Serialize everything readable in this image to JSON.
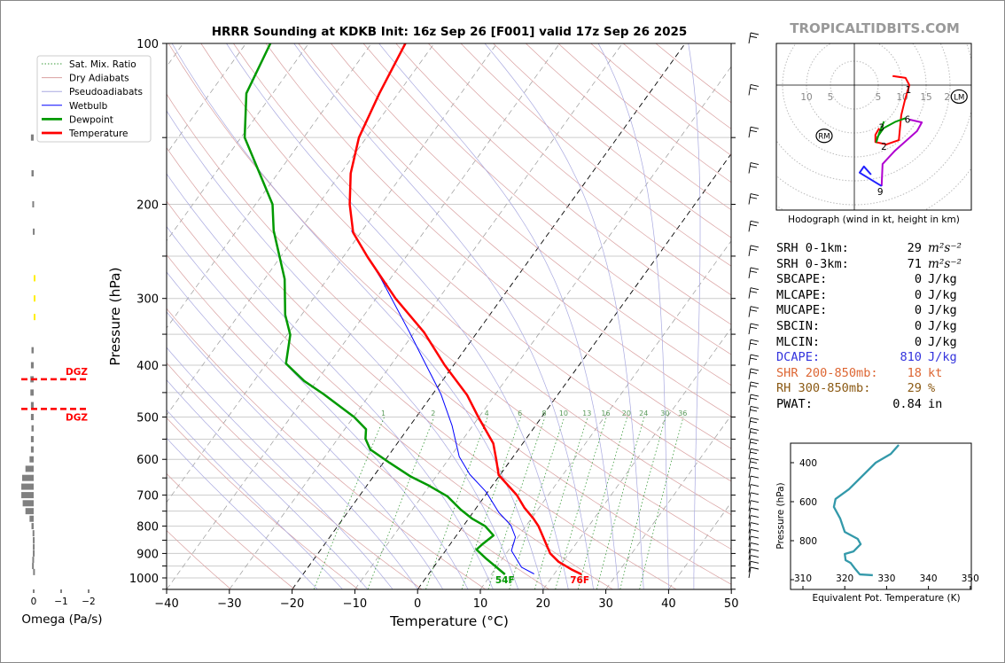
{
  "brand": "TROPICALTIDBITS.COM",
  "chart_data": [
    {
      "type": "line",
      "title": "HRRR Sounding at KDKB Init: 16z Sep 26 [F001] valid 17z Sep 26 2025",
      "xlabel": "Temperature (°C)",
      "ylabel": "Pressure (hPa)",
      "xlim": [
        -40,
        50
      ],
      "ylim": [
        1050,
        100
      ],
      "y_scale": "log",
      "x_skewed": true,
      "grid": true,
      "legend_position": "upper-left",
      "x_ticks": [
        "−40",
        "−30",
        "−20",
        "−10",
        "0",
        "10",
        "20",
        "30",
        "40",
        "50"
      ],
      "y_ticks": [
        "100",
        "200",
        "300",
        "400",
        "500",
        "600",
        "700",
        "800",
        "900",
        "1000"
      ],
      "legend": [
        {
          "label": "Sat. Mix. Ratio",
          "color": "#3a9a3a",
          "style": "dotted"
        },
        {
          "label": "Dry Adiabats",
          "color": "#d9a0a0",
          "style": "solid"
        },
        {
          "label": "Pseudoadiabats",
          "color": "#a9a9e0",
          "style": "solid"
        },
        {
          "label": "Wetbulb",
          "color": "#0000ff",
          "style": "solid"
        },
        {
          "label": "Dewpoint",
          "color": "#009900",
          "style": "thick"
        },
        {
          "label": "Temperature",
          "color": "#ff0000",
          "style": "thick"
        }
      ],
      "mixing_ratio_labels": [
        "1",
        "2",
        "4",
        "6",
        "8",
        "10",
        "13",
        "16",
        "20",
        "24",
        "30",
        "36"
      ],
      "highlighted_isotherms": [
        0,
        -20
      ],
      "series": [
        {
          "name": "Temperature",
          "color": "#ff0000",
          "p": [
            100,
            124,
            150,
            175,
            200,
            226,
            251,
            300,
            347,
            400,
            455,
            500,
            560,
            600,
            642,
            700,
            740,
            774,
            800,
            900,
            933,
            966,
            985
          ],
          "t": [
            -64.6,
            -63.0,
            -61.2,
            -58.4,
            -55.0,
            -51.2,
            -46.1,
            -36.9,
            -28.5,
            -21.4,
            -14.4,
            -10.1,
            -4.7,
            -2.4,
            -0.2,
            5.0,
            7.7,
            10.3,
            12.0,
            17.0,
            19.3,
            22.4,
            24.4
          ]
        },
        {
          "name": "Dewpoint",
          "color": "#009900",
          "p": [
            100,
            124,
            150,
            200,
            224,
            276,
            322,
            351,
            397,
            428,
            453,
            500,
            527,
            549,
            575,
            609,
            645,
            672,
            704,
            745,
            774,
            800,
            833,
            862,
            885,
            919,
            948,
            985
          ],
          "t": [
            -86.1,
            -84.2,
            -79.4,
            -67.3,
            -64.1,
            -56.8,
            -52.6,
            -49.5,
            -46.9,
            -42.0,
            -37.4,
            -29.9,
            -26.6,
            -25.6,
            -23.6,
            -19.0,
            -14.2,
            -10.1,
            -5.9,
            -2.3,
            0.5,
            3.5,
            5.9,
            5.2,
            4.8,
            7.3,
            9.5,
            12.2
          ]
        },
        {
          "name": "Wetbulb",
          "color": "#0000ff",
          "p": [
            224,
            276,
            347,
            397,
            453,
            519,
            593,
            640,
            690,
            754,
            797,
            839,
            889,
            955,
            983
          ],
          "t": [
            -51.7,
            -41.4,
            -30.8,
            -24.7,
            -18.7,
            -13.3,
            -8.6,
            -4.9,
            -0.3,
            4.1,
            7.5,
            9.6,
            10.5,
            14.0,
            16.8
          ]
        }
      ],
      "surface_labels": {
        "dewpoint": "54F",
        "temperature": "76F"
      }
    },
    {
      "type": "bar",
      "xlabel": "Omega (Pa/s)",
      "x_ticks": [
        "0",
        "−1",
        "−2"
      ],
      "xlim": [
        0,
        -2
      ],
      "p": [
        150,
        175,
        200,
        225,
        275,
        300,
        325,
        375,
        400,
        425,
        450,
        475,
        500,
        525,
        550,
        575,
        600,
        625,
        650,
        675,
        700,
        725,
        750,
        775,
        800,
        825,
        850,
        875,
        900,
        925,
        950,
        975
      ],
      "values": [
        0.1,
        0.08,
        0.05,
        0.03,
        -0.03,
        -0.05,
        -0.04,
        0.08,
        0.1,
        0.12,
        0.12,
        0.1,
        0.1,
        0.08,
        0.1,
        0.1,
        0.15,
        0.3,
        0.42,
        0.45,
        0.45,
        0.4,
        0.3,
        0.15,
        0.08,
        0.04,
        0.03,
        0.03,
        0.03,
        0.05,
        0.06,
        0.02
      ],
      "bar_color": "#808080",
      "highlight_color": "#ffee00",
      "dgz": {
        "label": "DGZ",
        "p": [
          425,
          483
        ],
        "color": "#ff0000"
      }
    },
    {
      "type": "line",
      "title": "Hodograph (wind in kt, height in km)",
      "rings_kt": [
        5,
        10,
        15,
        20,
        25,
        30
      ],
      "ring_labels": [
        "10",
        "5",
        "5",
        "10",
        "15",
        "20"
      ],
      "segments": [
        {
          "color": "#ff0000",
          "u": [
            8,
            10.7,
            11.5,
            10.6,
            9.8,
            9.3,
            6.7,
            4.4,
            4.4,
            5.2
          ],
          "v": [
            1.9,
            1.5,
            0,
            -3,
            -6.3,
            -11.5,
            -12.4,
            -11.9,
            -10.4,
            -9
          ]
        },
        {
          "color": "#009900",
          "u": [
            10.7,
            8.5,
            6.1,
            4.8,
            4.6,
            5.2,
            6.2
          ],
          "v": [
            -6.9,
            -7.7,
            -9.0,
            -10.9,
            -11.9,
            -10,
            -7.6
          ]
        },
        {
          "color": "#b000d0",
          "u": [
            11.5,
            14.1,
            13.1,
            8.5,
            5.9,
            5.7
          ],
          "v": [
            -7.2,
            -7.8,
            -9.6,
            -13.7,
            -16.5,
            -21.1
          ]
        },
        {
          "color": "#2020ff",
          "u": [
            5.7,
            1.1,
            2.0,
            3.5
          ],
          "v": [
            -21.1,
            -18.3,
            -17.0,
            -18.7
          ]
        }
      ],
      "height_labels": [
        {
          "text": "1",
          "u": 11.3,
          "v": -0.9
        },
        {
          "text": "2",
          "u": 6.2,
          "v": -12.8
        },
        {
          "text": "3",
          "u": 5.7,
          "v": -8.8
        },
        {
          "text": "6",
          "u": 11.1,
          "v": -7.1
        },
        {
          "text": "9",
          "u": 5.4,
          "v": -22.2
        }
      ],
      "storm_motion": [
        {
          "text": "RM",
          "u": -6.3,
          "v": -10.6
        },
        {
          "text": "LM",
          "u": 21.9,
          "v": -2.4
        }
      ]
    },
    {
      "type": "line",
      "xlabel": "Equivalent Pot. Temperature (K)",
      "ylabel": "Pressure (hPa)",
      "xlim": [
        308,
        350
      ],
      "ylim": [
        1050,
        300
      ],
      "x_ticks": [
        "310",
        "320",
        "330",
        "340",
        "350"
      ],
      "y_ticks": [
        "400",
        "600",
        "800"
      ],
      "color": "#3399aa",
      "theta_e": [
        332.9,
        331.0,
        327.4,
        321.0,
        317.8,
        317.4,
        318.9,
        320.0,
        323.1,
        323.8,
        322.1,
        320.0,
        320.2,
        321.4,
        322.5,
        323.6,
        326.7
      ],
      "p": [
        309,
        355,
        400,
        536,
        586,
        627,
        686,
        755,
        791,
        818,
        855,
        868,
        900,
        914,
        945,
        973,
        977
      ]
    }
  ],
  "stats": [
    {
      "label": "SRH 0-1km:",
      "value": "29",
      "unit": "m²s⁻²",
      "color": "#000000"
    },
    {
      "label": "SRH 0-3km:",
      "value": "71",
      "unit": "m²s⁻²",
      "color": "#000000"
    },
    {
      "label": "SBCAPE:",
      "value": "0",
      "unit": "J/kg",
      "color": "#000000"
    },
    {
      "label": "MLCAPE:",
      "value": "0",
      "unit": "J/kg",
      "color": "#000000"
    },
    {
      "label": "MUCAPE:",
      "value": "0",
      "unit": "J/kg",
      "color": "#000000"
    },
    {
      "label": "SBCIN:",
      "value": "0",
      "unit": "J/kg",
      "color": "#000000"
    },
    {
      "label": "MLCIN:",
      "value": "0",
      "unit": "J/kg",
      "color": "#000000"
    },
    {
      "label": "DCAPE:",
      "value": "810",
      "unit": "J/kg",
      "color": "#3333dd"
    },
    {
      "label": "SHR 200-850mb:",
      "value": "18",
      "unit": "kt",
      "color": "#dd6633"
    },
    {
      "label": "RH 300-850mb:",
      "value": "29",
      "unit": "%",
      "color": "#8b5a14"
    },
    {
      "label": "PWAT:",
      "value": "0.84",
      "unit": "in",
      "color": "#000000"
    }
  ]
}
